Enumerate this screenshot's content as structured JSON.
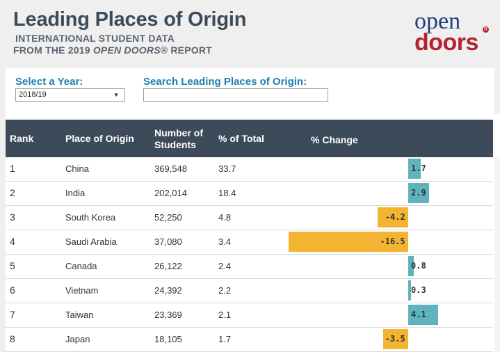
{
  "header": {
    "title": "Leading Places of Origin",
    "subtitle_line1": "INTERNATIONAL STUDENT DATA",
    "subtitle_line2_prefix": "FROM THE 2019 ",
    "subtitle_line2_italic": "OPEN DOORS",
    "subtitle_line2_suffix": "® REPORT"
  },
  "logo": {
    "top": "open",
    "bottom": "doors",
    "reg": "R"
  },
  "controls": {
    "year_label": "Select a Year:",
    "year_value": "2018/19",
    "search_label": "Search Leading Places of Origin:",
    "search_value": ""
  },
  "table": {
    "headers": {
      "rank": "Rank",
      "place": "Place of Origin",
      "students_line1": "Number of",
      "students_line2": "Students",
      "pct_total": "% of Total",
      "pct_change": "% Change"
    },
    "rows": [
      {
        "rank": "1",
        "place": "China",
        "students": "369,548",
        "pct_total": "33.7",
        "change": 1.7,
        "change_label": "1.7"
      },
      {
        "rank": "2",
        "place": "India",
        "students": "202,014",
        "pct_total": "18.4",
        "change": 2.9,
        "change_label": "2.9"
      },
      {
        "rank": "3",
        "place": "South Korea",
        "students": "52,250",
        "pct_total": "4.8",
        "change": -4.2,
        "change_label": "-4.2"
      },
      {
        "rank": "4",
        "place": "Saudi Arabia",
        "students": "37,080",
        "pct_total": "3.4",
        "change": -16.5,
        "change_label": "-16.5"
      },
      {
        "rank": "5",
        "place": "Canada",
        "students": "26,122",
        "pct_total": "2.4",
        "change": 0.8,
        "change_label": "0.8"
      },
      {
        "rank": "6",
        "place": "Vietnam",
        "students": "24,392",
        "pct_total": "2.2",
        "change": 0.3,
        "change_label": "0.3"
      },
      {
        "rank": "7",
        "place": "Taiwan",
        "students": "23,369",
        "pct_total": "2.1",
        "change": 4.1,
        "change_label": "4.1"
      },
      {
        "rank": "8",
        "place": "Japan",
        "students": "18,105",
        "pct_total": "1.7",
        "change": -3.5,
        "change_label": "-3.5"
      }
    ]
  },
  "colors": {
    "header_bg": "#3c4a5a",
    "positive_bar": "#5fb3bd",
    "negative_bar": "#f2b431",
    "label_blue": "#1f7fae",
    "logo_blue": "#1f3f7a",
    "logo_red": "#b52330"
  }
}
